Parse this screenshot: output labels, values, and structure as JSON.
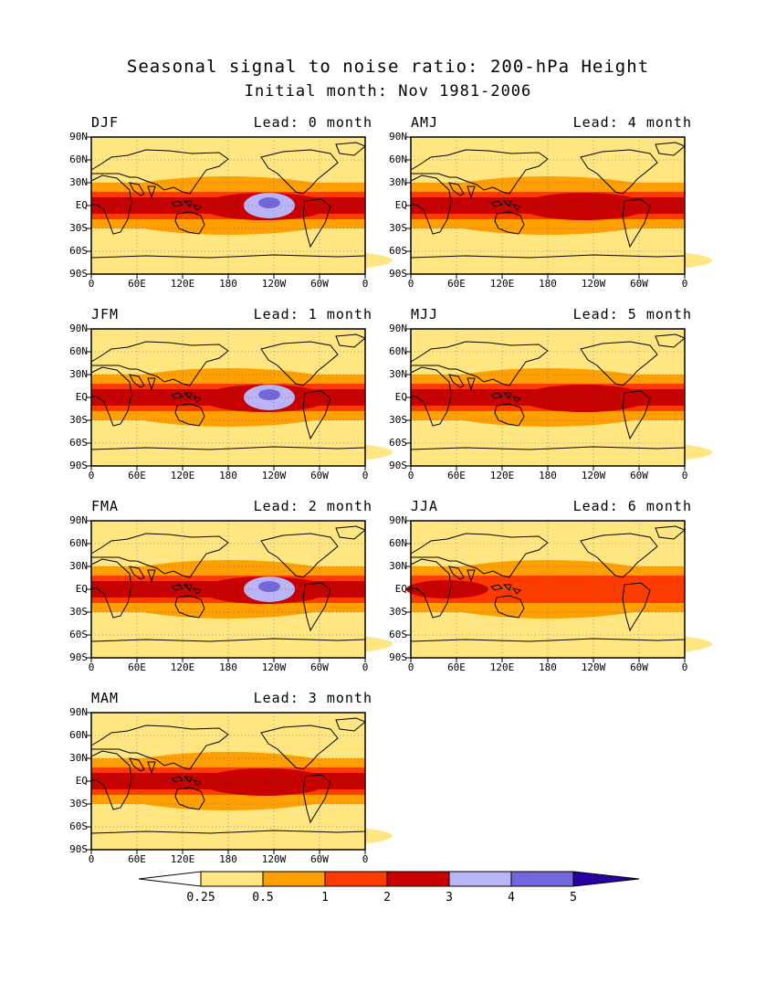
{
  "title": "Seasonal signal to noise ratio: 200-hPa Height",
  "subtitle": "Initial month: Nov 1981-2006",
  "lat_labels": [
    "90N",
    "60N",
    "30N",
    "EQ",
    "30S",
    "60S",
    "90S"
  ],
  "lon_labels": [
    "0",
    "60E",
    "120E",
    "180",
    "120W",
    "60W",
    "0"
  ],
  "panels": [
    {
      "season": "DJF",
      "lead": "Lead: 0 month",
      "core": "blue"
    },
    {
      "season": "AMJ",
      "lead": "Lead: 4 month",
      "core": "red"
    },
    {
      "season": "JFM",
      "lead": "Lead: 1 month",
      "core": "blue"
    },
    {
      "season": "MJJ",
      "lead": "Lead: 5 month",
      "core": "red"
    },
    {
      "season": "FMA",
      "lead": "Lead: 2 month",
      "core": "blue"
    },
    {
      "season": "JJA",
      "lead": "Lead: 6 month",
      "core": "orange"
    },
    {
      "season": "MAM",
      "lead": "Lead: 3 month",
      "core": "red"
    }
  ],
  "colorbar": {
    "labels": [
      "0.25",
      "0.5",
      "1",
      "2",
      "3",
      "4",
      "5"
    ],
    "colors": [
      "#ffffff",
      "#ffe680",
      "#ffa000",
      "#ff3c00",
      "#c80000",
      "#b9b4f5",
      "#7466dc",
      "#2800a0"
    ]
  },
  "palette": {
    "pale": "#ffe680",
    "orange": "#ffa000",
    "redorange": "#ff3c00",
    "darkred": "#c80000",
    "lightblue": "#b9b4f5",
    "midblue": "#7466dc"
  }
}
